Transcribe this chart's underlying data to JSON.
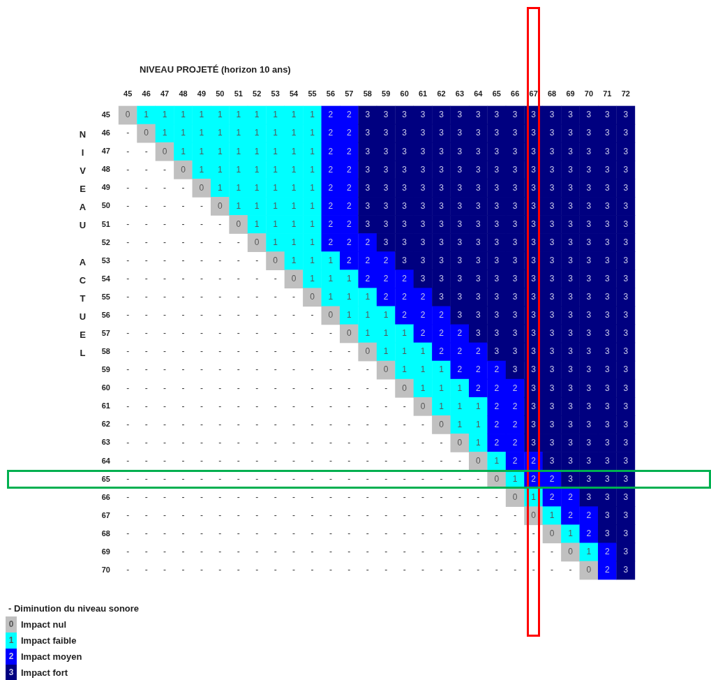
{
  "chart_data": {
    "type": "heatmap",
    "title": "NIVEAU PROJETÉ (horizon 10 ans)",
    "ylabel": "NIVEAU ACTUEL",
    "categories": [
      "45",
      "46",
      "47",
      "48",
      "49",
      "50",
      "51",
      "52",
      "53",
      "54",
      "55",
      "56",
      "57",
      "58",
      "59",
      "60",
      "61",
      "62",
      "63",
      "64",
      "65",
      "66",
      "67",
      "68",
      "69",
      "70",
      "71",
      "72"
    ],
    "y_categories": [
      "45",
      "46",
      "47",
      "48",
      "49",
      "50",
      "51",
      "52",
      "53",
      "54",
      "55",
      "56",
      "57",
      "58",
      "59",
      "60",
      "61",
      "62",
      "63",
      "64",
      "65",
      "66",
      "67",
      "68",
      "69",
      "70"
    ],
    "cells": [
      [
        0,
        1,
        1,
        1,
        1,
        1,
        1,
        1,
        1,
        1,
        1,
        2,
        2,
        3,
        3,
        3,
        3,
        3,
        3,
        3,
        3,
        3,
        3,
        3,
        3,
        3,
        3,
        3
      ],
      [
        null,
        0,
        1,
        1,
        1,
        1,
        1,
        1,
        1,
        1,
        1,
        2,
        2,
        3,
        3,
        3,
        3,
        3,
        3,
        3,
        3,
        3,
        3,
        3,
        3,
        3,
        3,
        3
      ],
      [
        null,
        null,
        0,
        1,
        1,
        1,
        1,
        1,
        1,
        1,
        1,
        2,
        2,
        3,
        3,
        3,
        3,
        3,
        3,
        3,
        3,
        3,
        3,
        3,
        3,
        3,
        3,
        3
      ],
      [
        null,
        null,
        null,
        0,
        1,
        1,
        1,
        1,
        1,
        1,
        1,
        2,
        2,
        3,
        3,
        3,
        3,
        3,
        3,
        3,
        3,
        3,
        3,
        3,
        3,
        3,
        3,
        3
      ],
      [
        null,
        null,
        null,
        null,
        0,
        1,
        1,
        1,
        1,
        1,
        1,
        2,
        2,
        3,
        3,
        3,
        3,
        3,
        3,
        3,
        3,
        3,
        3,
        3,
        3,
        3,
        3,
        3
      ],
      [
        null,
        null,
        null,
        null,
        null,
        0,
        1,
        1,
        1,
        1,
        1,
        2,
        2,
        3,
        3,
        3,
        3,
        3,
        3,
        3,
        3,
        3,
        3,
        3,
        3,
        3,
        3,
        3
      ],
      [
        null,
        null,
        null,
        null,
        null,
        null,
        0,
        1,
        1,
        1,
        1,
        2,
        2,
        3,
        3,
        3,
        3,
        3,
        3,
        3,
        3,
        3,
        3,
        3,
        3,
        3,
        3,
        3
      ],
      [
        null,
        null,
        null,
        null,
        null,
        null,
        null,
        0,
        1,
        1,
        1,
        2,
        2,
        2,
        3,
        3,
        3,
        3,
        3,
        3,
        3,
        3,
        3,
        3,
        3,
        3,
        3,
        3
      ],
      [
        null,
        null,
        null,
        null,
        null,
        null,
        null,
        null,
        0,
        1,
        1,
        1,
        2,
        2,
        2,
        3,
        3,
        3,
        3,
        3,
        3,
        3,
        3,
        3,
        3,
        3,
        3,
        3
      ],
      [
        null,
        null,
        null,
        null,
        null,
        null,
        null,
        null,
        null,
        0,
        1,
        1,
        1,
        2,
        2,
        2,
        3,
        3,
        3,
        3,
        3,
        3,
        3,
        3,
        3,
        3,
        3,
        3
      ],
      [
        null,
        null,
        null,
        null,
        null,
        null,
        null,
        null,
        null,
        null,
        0,
        1,
        1,
        1,
        2,
        2,
        2,
        3,
        3,
        3,
        3,
        3,
        3,
        3,
        3,
        3,
        3,
        3
      ],
      [
        null,
        null,
        null,
        null,
        null,
        null,
        null,
        null,
        null,
        null,
        null,
        0,
        1,
        1,
        1,
        2,
        2,
        2,
        3,
        3,
        3,
        3,
        3,
        3,
        3,
        3,
        3,
        3
      ],
      [
        null,
        null,
        null,
        null,
        null,
        null,
        null,
        null,
        null,
        null,
        null,
        null,
        0,
        1,
        1,
        1,
        2,
        2,
        2,
        3,
        3,
        3,
        3,
        3,
        3,
        3,
        3,
        3
      ],
      [
        null,
        null,
        null,
        null,
        null,
        null,
        null,
        null,
        null,
        null,
        null,
        null,
        null,
        0,
        1,
        1,
        1,
        2,
        2,
        2,
        3,
        3,
        3,
        3,
        3,
        3,
        3,
        3
      ],
      [
        null,
        null,
        null,
        null,
        null,
        null,
        null,
        null,
        null,
        null,
        null,
        null,
        null,
        null,
        0,
        1,
        1,
        1,
        2,
        2,
        2,
        3,
        3,
        3,
        3,
        3,
        3,
        3
      ],
      [
        null,
        null,
        null,
        null,
        null,
        null,
        null,
        null,
        null,
        null,
        null,
        null,
        null,
        null,
        null,
        0,
        1,
        1,
        1,
        2,
        2,
        2,
        3,
        3,
        3,
        3,
        3,
        3
      ],
      [
        null,
        null,
        null,
        null,
        null,
        null,
        null,
        null,
        null,
        null,
        null,
        null,
        null,
        null,
        null,
        null,
        0,
        1,
        1,
        1,
        2,
        2,
        3,
        3,
        3,
        3,
        3,
        3
      ],
      [
        null,
        null,
        null,
        null,
        null,
        null,
        null,
        null,
        null,
        null,
        null,
        null,
        null,
        null,
        null,
        null,
        null,
        0,
        1,
        1,
        2,
        2,
        3,
        3,
        3,
        3,
        3,
        3
      ],
      [
        null,
        null,
        null,
        null,
        null,
        null,
        null,
        null,
        null,
        null,
        null,
        null,
        null,
        null,
        null,
        null,
        null,
        null,
        0,
        1,
        2,
        2,
        3,
        3,
        3,
        3,
        3,
        3
      ],
      [
        null,
        null,
        null,
        null,
        null,
        null,
        null,
        null,
        null,
        null,
        null,
        null,
        null,
        null,
        null,
        null,
        null,
        null,
        null,
        0,
        1,
        2,
        2,
        3,
        3,
        3,
        3,
        3
      ],
      [
        null,
        null,
        null,
        null,
        null,
        null,
        null,
        null,
        null,
        null,
        null,
        null,
        null,
        null,
        null,
        null,
        null,
        null,
        null,
        null,
        0,
        1,
        2,
        2,
        3,
        3,
        3,
        3
      ],
      [
        null,
        null,
        null,
        null,
        null,
        null,
        null,
        null,
        null,
        null,
        null,
        null,
        null,
        null,
        null,
        null,
        null,
        null,
        null,
        null,
        null,
        0,
        1,
        2,
        2,
        3,
        3,
        3
      ],
      [
        null,
        null,
        null,
        null,
        null,
        null,
        null,
        null,
        null,
        null,
        null,
        null,
        null,
        null,
        null,
        null,
        null,
        null,
        null,
        null,
        null,
        null,
        0,
        1,
        2,
        2,
        3,
        3
      ],
      [
        null,
        null,
        null,
        null,
        null,
        null,
        null,
        null,
        null,
        null,
        null,
        null,
        null,
        null,
        null,
        null,
        null,
        null,
        null,
        null,
        null,
        null,
        null,
        0,
        1,
        2,
        3,
        3
      ],
      [
        null,
        null,
        null,
        null,
        null,
        null,
        null,
        null,
        null,
        null,
        null,
        null,
        null,
        null,
        null,
        null,
        null,
        null,
        null,
        null,
        null,
        null,
        null,
        null,
        0,
        1,
        2,
        3
      ],
      [
        null,
        null,
        null,
        null,
        null,
        null,
        null,
        null,
        null,
        null,
        null,
        null,
        null,
        null,
        null,
        null,
        null,
        null,
        null,
        null,
        null,
        null,
        null,
        null,
        null,
        0,
        2,
        3
      ]
    ],
    "cell_labels": [
      [
        "0",
        "1",
        "1",
        "1",
        "1",
        "1",
        "1",
        "1",
        "1",
        "1",
        "1",
        "2",
        "2",
        "3",
        "3",
        "3",
        "3",
        "3",
        "3",
        "3",
        "3",
        "3",
        "3",
        "3",
        "3",
        "3",
        "3",
        "3"
      ],
      [
        "-",
        "0",
        "1",
        "1",
        "1",
        "1",
        "1",
        "1",
        "1",
        "1",
        "1",
        "2",
        "2",
        "3",
        "3",
        "3",
        "3",
        "3",
        "3",
        "3",
        "3",
        "3",
        "3",
        "3",
        "3",
        "3",
        "3",
        "3"
      ],
      [
        "-",
        "-",
        "0",
        "1",
        "1",
        "1",
        "1",
        "1",
        "1",
        "1",
        "1",
        "2",
        "2",
        "3",
        "3",
        "3",
        "3",
        "3",
        "3",
        "3",
        "3",
        "3",
        "3",
        "3",
        "3",
        "3",
        "3",
        "3"
      ],
      [
        "-",
        "-",
        "-",
        "0",
        "1",
        "1",
        "1",
        "1",
        "1",
        "1",
        "1",
        "2",
        "2",
        "3",
        "3",
        "3",
        "3",
        "3",
        "3",
        "3",
        "3",
        "3",
        "3",
        "3",
        "3",
        "3",
        "3",
        "3"
      ],
      [
        "-",
        "-",
        "-",
        "-",
        "0",
        "1",
        "1",
        "1",
        "1",
        "1",
        "1",
        "2",
        "2",
        "3",
        "3",
        "3",
        "3",
        "3",
        "3",
        "3",
        "3",
        "3",
        "3",
        "3",
        "3",
        "3",
        "3",
        "3"
      ],
      [
        "-",
        "-",
        "-",
        "-",
        "-",
        "0",
        "1",
        "1",
        "1",
        "1",
        "1",
        "2",
        "2",
        "3",
        "3",
        "3",
        "3",
        "3",
        "3",
        "3",
        "3",
        "3",
        "3",
        "3",
        "3",
        "3",
        "3",
        "3"
      ],
      [
        "-",
        "-",
        "-",
        "-",
        "-",
        "-",
        "0",
        "1",
        "1",
        "1",
        "1",
        "2",
        "2",
        "3",
        "3",
        "3",
        "3",
        "3",
        "3",
        "3",
        "3",
        "3",
        "3",
        "3",
        "3",
        "3",
        "3",
        "3"
      ],
      [
        "-",
        "-",
        "-",
        "-",
        "-",
        "-",
        "-",
        "0",
        "1",
        "1",
        "1",
        "2",
        "2",
        "2",
        "3",
        "3",
        "3",
        "3",
        "3",
        "3",
        "3",
        "3",
        "3",
        "3",
        "3",
        "3",
        "3",
        "3"
      ],
      [
        "-",
        "-",
        "-",
        "-",
        "-",
        "-",
        "-",
        "-",
        "0",
        "1",
        "1",
        "1",
        "2",
        "2",
        "2",
        "3",
        "3",
        "3",
        "3",
        "3",
        "3",
        "3",
        "3",
        "3",
        "3",
        "3",
        "3",
        "3"
      ],
      [
        "-",
        "-",
        "-",
        "-",
        "-",
        "-",
        "-",
        "-",
        "-",
        "0",
        "1",
        "1",
        "1",
        "2",
        "2",
        "2",
        "3",
        "3",
        "3",
        "3",
        "3",
        "3",
        "3",
        "3",
        "3",
        "3",
        "3",
        "3"
      ],
      [
        "-",
        "-",
        "-",
        "-",
        "-",
        "-",
        "-",
        "-",
        "-",
        "-",
        "0",
        "1",
        "1",
        "1",
        "2",
        "2",
        "2",
        "3",
        "3",
        "3",
        "3",
        "3",
        "3",
        "3",
        "3",
        "3",
        "3",
        "3"
      ],
      [
        "-",
        "-",
        "-",
        "-",
        "-",
        "-",
        "-",
        "-",
        "-",
        "-",
        "-",
        "0",
        "1",
        "1",
        "1",
        "2",
        "2",
        "2",
        "3",
        "3",
        "3",
        "3",
        "3",
        "3",
        "3",
        "3",
        "3",
        "3"
      ],
      [
        "-",
        "-",
        "-",
        "-",
        "-",
        "-",
        "-",
        "-",
        "-",
        "-",
        "-",
        "-",
        "0",
        "1",
        "1",
        "1",
        "2",
        "2",
        "2",
        "3",
        "3",
        "3",
        "3",
        "3",
        "3",
        "3",
        "3",
        "3"
      ],
      [
        "-",
        "-",
        "-",
        "-",
        "-",
        "-",
        "-",
        "-",
        "-",
        "-",
        "-",
        "-",
        "-",
        "0",
        "1",
        "1",
        "1",
        "2",
        "2",
        "2",
        "3",
        "3",
        "3",
        "3",
        "3",
        "3",
        "3",
        "3"
      ],
      [
        "-",
        "-",
        "-",
        "-",
        "-",
        "-",
        "-",
        "-",
        "-",
        "-",
        "-",
        "-",
        "-",
        "-",
        "0",
        "1",
        "1",
        "1",
        "2",
        "2",
        "2",
        "3",
        "3",
        "3",
        "3",
        "3",
        "3",
        "3"
      ],
      [
        "-",
        "-",
        "-",
        "-",
        "-",
        "-",
        "-",
        "-",
        "-",
        "-",
        "-",
        "-",
        "-",
        "-",
        "-",
        "0",
        "1",
        "1",
        "1",
        "2",
        "2",
        "2",
        "3",
        "3",
        "3",
        "3",
        "3",
        "3"
      ],
      [
        "-",
        "-",
        "-",
        "-",
        "-",
        "-",
        "-",
        "-",
        "-",
        "-",
        "-",
        "-",
        "-",
        "-",
        "-",
        "-",
        "0",
        "1",
        "1",
        "1",
        "2",
        "2",
        "3",
        "3",
        "3",
        "3",
        "3",
        "3"
      ],
      [
        "-",
        "-",
        "-",
        "-",
        "-",
        "-",
        "-",
        "-",
        "-",
        "-",
        "-",
        "-",
        "-",
        "-",
        "-",
        "-",
        "-",
        "0",
        "1",
        "1",
        "2",
        "2",
        "3",
        "3",
        "3",
        "3",
        "3",
        "3"
      ],
      [
        "-",
        "-",
        "-",
        "-",
        "-",
        "-",
        "-",
        "-",
        "-",
        "-",
        "-",
        "-",
        "-",
        "-",
        "-",
        "-",
        "-",
        "-",
        "0",
        "1",
        "2",
        "2",
        "3",
        "3",
        "3",
        "3",
        "3",
        "3"
      ],
      [
        "-",
        "-",
        "-",
        "-",
        "-",
        "-",
        "-",
        "-",
        "-",
        "-",
        "-",
        "-",
        "-",
        "-",
        "-",
        "-",
        "-",
        "-",
        "-",
        "0",
        "1",
        "2",
        "2",
        "3",
        "3",
        "3",
        "3",
        "3"
      ],
      [
        "-",
        "-",
        "-",
        "-",
        "-",
        "-",
        "-",
        "-",
        "-",
        "-",
        "-",
        "-",
        "-",
        "-",
        "-",
        "-",
        "-",
        "-",
        "-",
        "-",
        "0",
        "1",
        "2",
        "2",
        "3",
        "3",
        "3",
        "3"
      ],
      [
        "-",
        "-",
        "-",
        "-",
        "-",
        "-",
        "-",
        "-",
        "-",
        "-",
        "-",
        "-",
        "-",
        "-",
        "-",
        "-",
        "-",
        "-",
        "-",
        "-",
        "-",
        "0",
        "1",
        "2",
        "2",
        "3",
        "3",
        "3"
      ],
      [
        "-",
        "-",
        "-",
        "-",
        "-",
        "-",
        "-",
        "-",
        "-",
        "-",
        "-",
        "-",
        "-",
        "-",
        "-",
        "-",
        "-",
        "-",
        "-",
        "-",
        "-",
        "-",
        "0",
        "1",
        "2",
        "2",
        "3",
        "3"
      ],
      [
        "-",
        "-",
        "-",
        "-",
        "-",
        "-",
        "-",
        "-",
        "-",
        "-",
        "-",
        "-",
        "-",
        "-",
        "-",
        "-",
        "-",
        "-",
        "-",
        "-",
        "-",
        "-",
        "-",
        "0",
        "1",
        "2",
        "3",
        "3"
      ],
      [
        "-",
        "-",
        "-",
        "-",
        "-",
        "-",
        "-",
        "-",
        "-",
        "-",
        "-",
        "-",
        "-",
        "-",
        "-",
        "-",
        "-",
        "-",
        "-",
        "-",
        "-",
        "-",
        "-",
        "-",
        "0",
        "1",
        "2",
        "3"
      ],
      [
        "-",
        "-",
        "-",
        "-",
        "-",
        "-",
        "-",
        "-",
        "-",
        "-",
        "-",
        "-",
        "-",
        "-",
        "-",
        "-",
        "-",
        "-",
        "-",
        "-",
        "-",
        "-",
        "-",
        "-",
        "-",
        "0",
        "2",
        "3"
      ]
    ],
    "data_labels": true,
    "colors": [
      "#c0c0c0",
      "#00ffff",
      "#0000ff",
      "#000080"
    ],
    "clim": [
      0,
      3
    ],
    "cticks": [
      {
        "value": 0,
        "label": "Impact nul"
      },
      {
        "value": 1,
        "label": "Impact faible"
      },
      {
        "value": 2,
        "label": "Impact moyen"
      },
      {
        "value": 3,
        "label": "Impact fort"
      }
    ],
    "annotations": [
      "- Diminution du niveau sonore"
    ]
  }
}
